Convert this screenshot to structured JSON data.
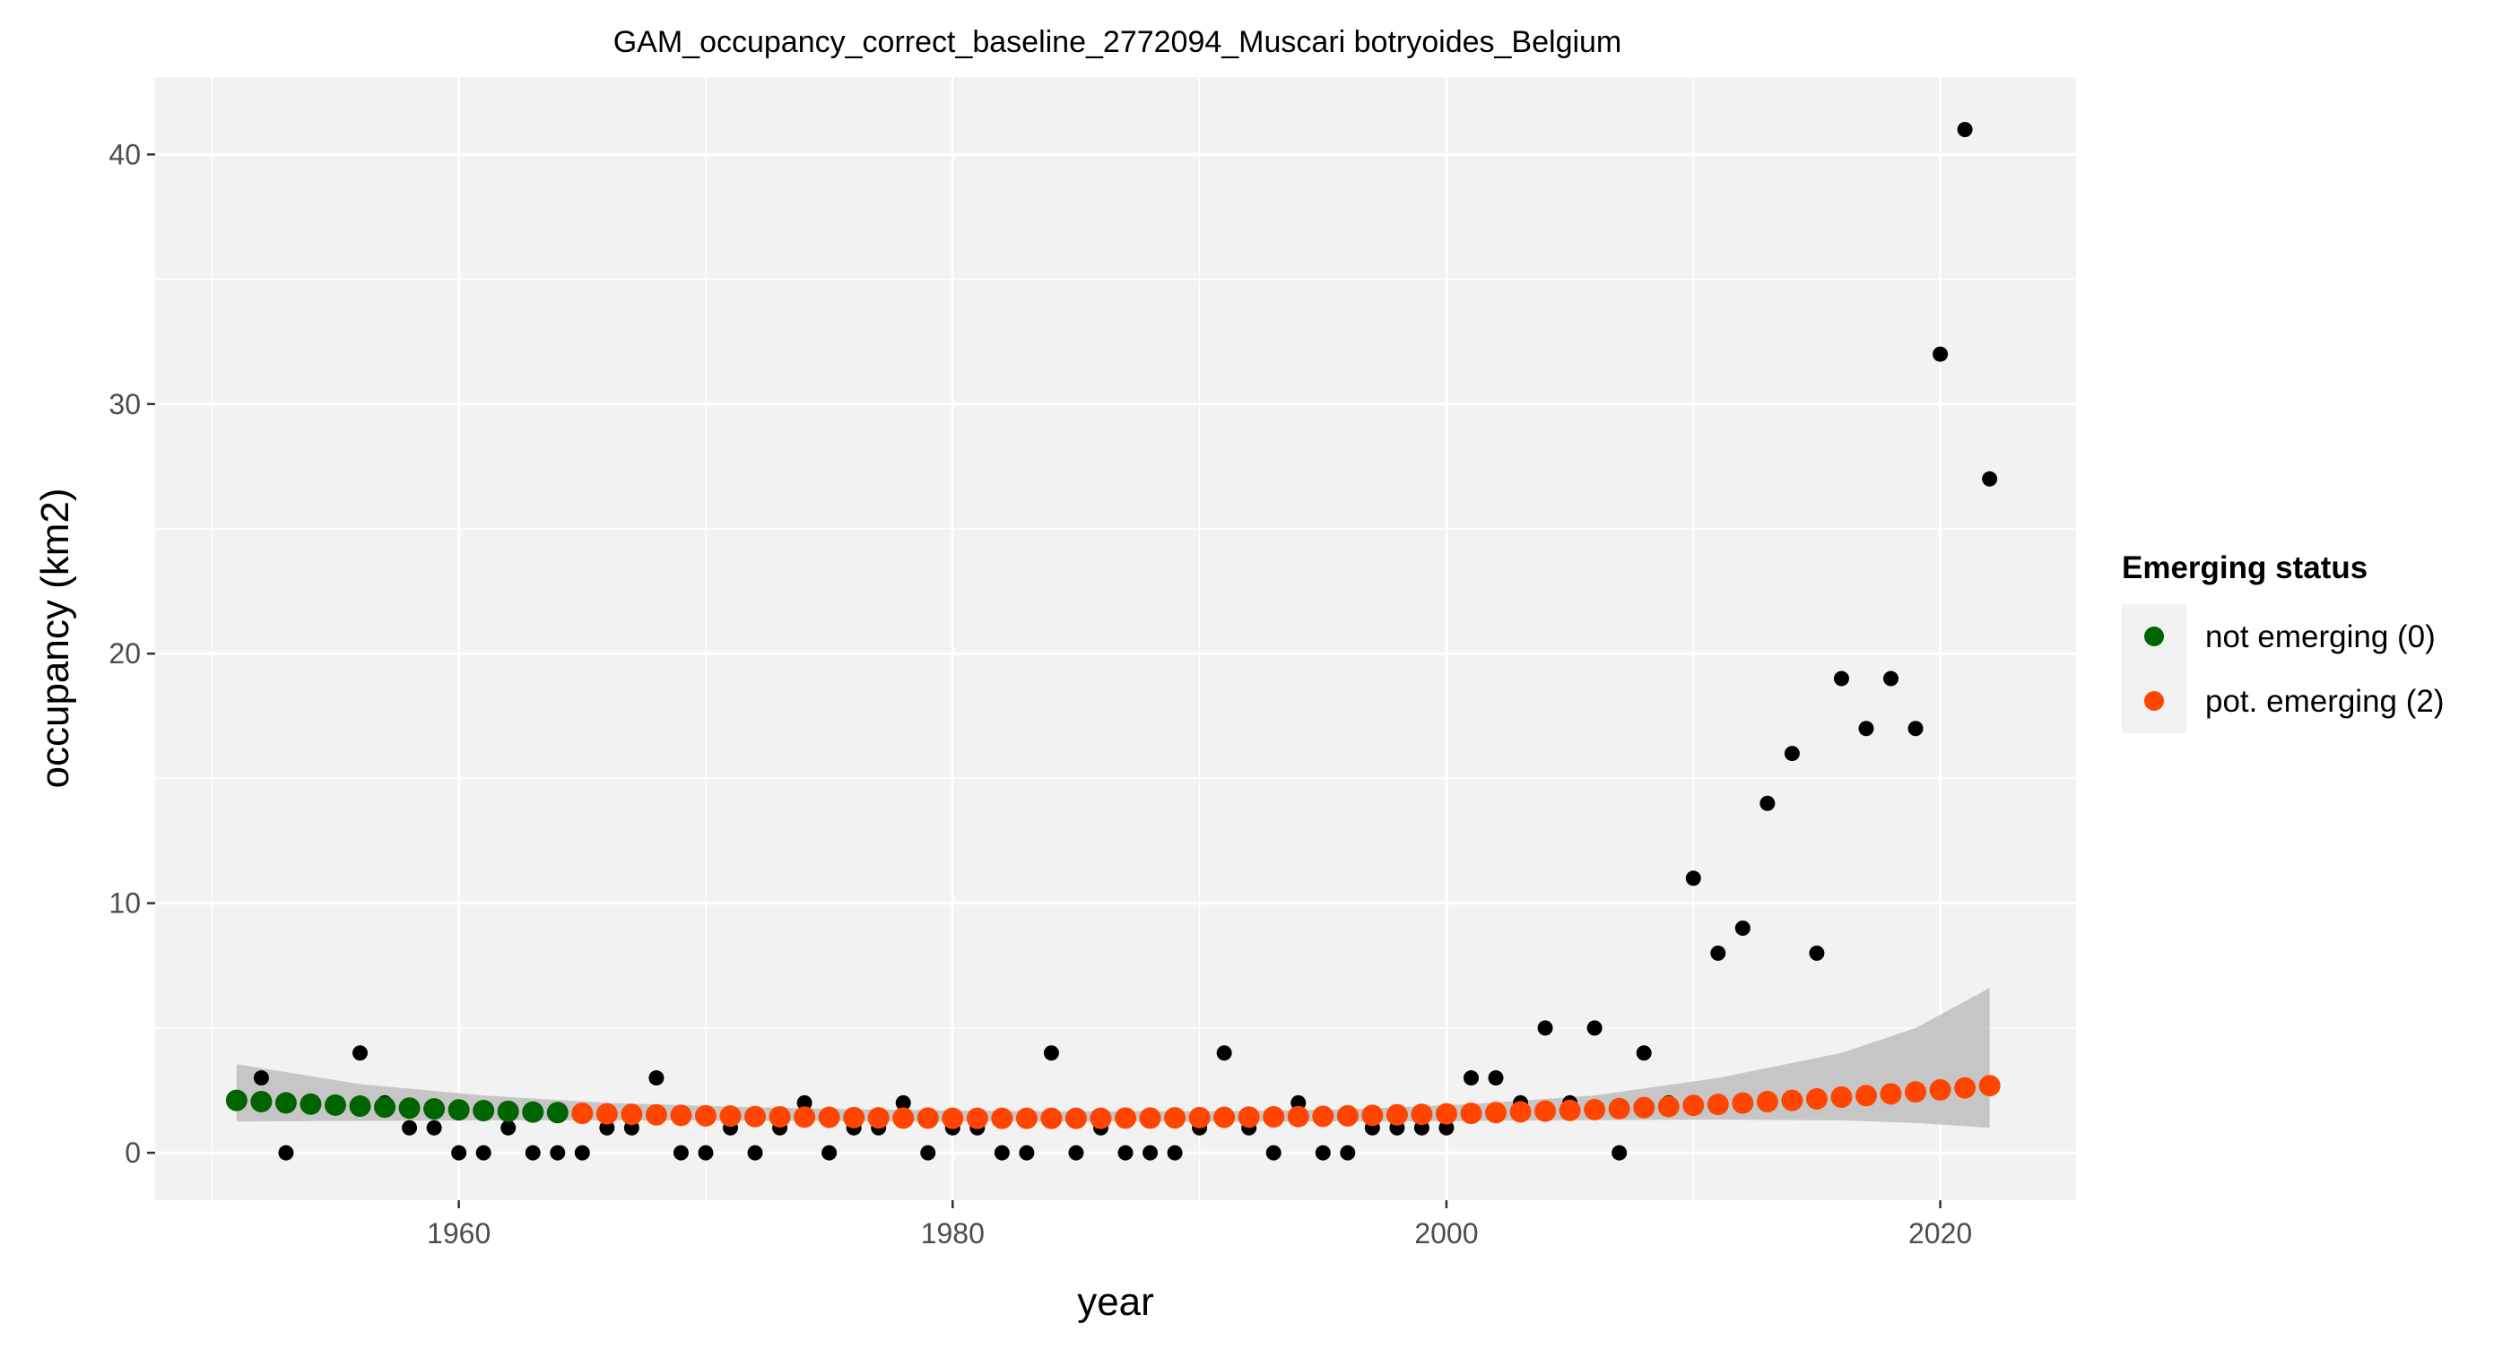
{
  "chart_data": {
    "type": "scatter",
    "title": "GAM_occupancy_correct_baseline_2772094_Muscari botryoides_Belgium",
    "xlabel": "year",
    "ylabel": "occupancy (km2)",
    "xlim": [
      1947.7,
      2025.5
    ],
    "ylim": [
      -1.9,
      43.1
    ],
    "x_ticks": [
      1960,
      1980,
      2000,
      2020
    ],
    "y_ticks": [
      0,
      10,
      20,
      30,
      40
    ],
    "grid": true,
    "legend": {
      "title": "Emerging status",
      "position": "right",
      "entries": [
        {
          "label": "not emerging (0)",
          "color": "#006400"
        },
        {
          "label": "pot. emerging (2)",
          "color": "#FF4500"
        }
      ]
    },
    "colors": {
      "panel_background": "#F2F2F2",
      "grid": "#FFFFFF",
      "observed": "#000000",
      "confidence_band": "#BEBEBE"
    },
    "observed": {
      "x": [
        1952,
        1953,
        1956,
        1957,
        1958,
        1959,
        1960,
        1961,
        1962,
        1963,
        1964,
        1965,
        1966,
        1967,
        1968,
        1969,
        1970,
        1971,
        1972,
        1973,
        1974,
        1975,
        1976,
        1977,
        1978,
        1979,
        1980,
        1981,
        1982,
        1983,
        1984,
        1985,
        1986,
        1987,
        1988,
        1989,
        1990,
        1991,
        1992,
        1993,
        1994,
        1995,
        1996,
        1997,
        1998,
        1999,
        2000,
        2001,
        2002,
        2003,
        2004,
        2005,
        2006,
        2007,
        2008,
        2009,
        2010,
        2011,
        2012,
        2013,
        2014,
        2015,
        2016,
        2017,
        2018,
        2019,
        2020,
        2021,
        2022
      ],
      "y": [
        3,
        0,
        4,
        2,
        1,
        1,
        0,
        0,
        1,
        0,
        0,
        0,
        1,
        1,
        3,
        0,
        0,
        1,
        0,
        1,
        2,
        0,
        1,
        1,
        2,
        0,
        1,
        1,
        0,
        0,
        4,
        0,
        1,
        0,
        0,
        0,
        1,
        4,
        1,
        0,
        2,
        0,
        0,
        1,
        1,
        1,
        1,
        3,
        3,
        2,
        5,
        2,
        5,
        0,
        4,
        2,
        11,
        8,
        9,
        14,
        16,
        8,
        19,
        17,
        19,
        17,
        32,
        41,
        27
      ]
    },
    "fitted": {
      "x": [
        1951,
        1952,
        1953,
        1954,
        1955,
        1956,
        1957,
        1958,
        1959,
        1960,
        1961,
        1962,
        1963,
        1964,
        1965,
        1966,
        1967,
        1968,
        1969,
        1970,
        1971,
        1972,
        1973,
        1974,
        1975,
        1976,
        1977,
        1978,
        1979,
        1980,
        1981,
        1982,
        1983,
        1984,
        1985,
        1986,
        1987,
        1988,
        1989,
        1990,
        1991,
        1992,
        1993,
        1994,
        1995,
        1996,
        1997,
        1998,
        1999,
        2000,
        2001,
        2002,
        2003,
        2004,
        2005,
        2006,
        2007,
        2008,
        2009,
        2010,
        2011,
        2012,
        2013,
        2014,
        2015,
        2016,
        2017,
        2018,
        2019,
        2020,
        2021,
        2022
      ],
      "y": [
        2.1,
        2.05,
        2.0,
        1.95,
        1.91,
        1.87,
        1.83,
        1.79,
        1.76,
        1.72,
        1.69,
        1.66,
        1.63,
        1.61,
        1.58,
        1.56,
        1.54,
        1.52,
        1.5,
        1.48,
        1.47,
        1.45,
        1.44,
        1.43,
        1.42,
        1.41,
        1.4,
        1.39,
        1.39,
        1.38,
        1.38,
        1.38,
        1.38,
        1.38,
        1.38,
        1.38,
        1.39,
        1.39,
        1.4,
        1.41,
        1.42,
        1.43,
        1.44,
        1.45,
        1.46,
        1.48,
        1.5,
        1.52,
        1.54,
        1.56,
        1.58,
        1.61,
        1.64,
        1.67,
        1.7,
        1.73,
        1.77,
        1.81,
        1.85,
        1.9,
        1.94,
        1.99,
        2.05,
        2.1,
        2.16,
        2.23,
        2.29,
        2.36,
        2.44,
        2.52,
        2.6,
        2.69
      ],
      "status": [
        0,
        0,
        0,
        0,
        0,
        0,
        0,
        0,
        0,
        0,
        0,
        0,
        0,
        0,
        2,
        2,
        2,
        2,
        2,
        2,
        2,
        2,
        2,
        2,
        2,
        2,
        2,
        2,
        2,
        2,
        2,
        2,
        2,
        2,
        2,
        2,
        2,
        2,
        2,
        2,
        2,
        2,
        2,
        2,
        2,
        2,
        2,
        2,
        2,
        2,
        2,
        2,
        2,
        2,
        2,
        2,
        2,
        2,
        2,
        2,
        2,
        2,
        2,
        2,
        2,
        2,
        2,
        2,
        2,
        2,
        2,
        2
      ]
    },
    "confidence_band": {
      "x": [
        1951,
        1956,
        1961,
        1966,
        1971,
        1976,
        1981,
        1986,
        1991,
        1996,
        2001,
        2006,
        2011,
        2016,
        2019,
        2022
      ],
      "lower": [
        1.25,
        1.28,
        1.3,
        1.3,
        1.29,
        1.27,
        1.26,
        1.25,
        1.25,
        1.26,
        1.28,
        1.31,
        1.33,
        1.3,
        1.2,
        1.0
      ],
      "upper": [
        3.55,
        2.75,
        2.3,
        2.0,
        1.85,
        1.74,
        1.68,
        1.66,
        1.67,
        1.74,
        1.95,
        2.3,
        3.0,
        4.0,
        5.0,
        6.6
      ]
    }
  }
}
